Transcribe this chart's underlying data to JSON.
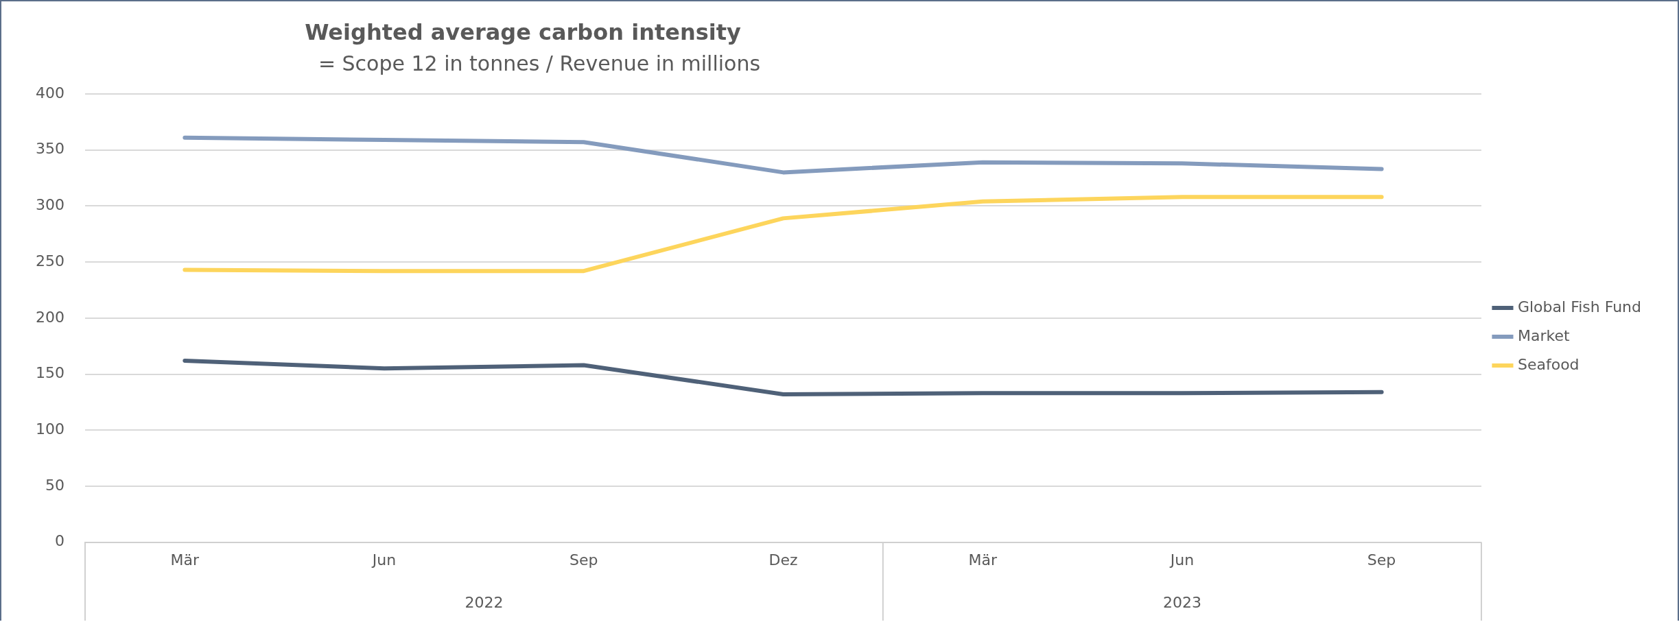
{
  "chart_data": {
    "type": "line",
    "title": "Weighted average carbon intensity",
    "subtitle": "= Scope 12 in tonnes / Revenue in millions",
    "categories": [
      "Mär",
      "Jun",
      "Sep",
      "Dez",
      "Mär",
      "Jun",
      "Sep"
    ],
    "annotations": [
      "2022",
      "2023"
    ],
    "series": [
      {
        "name": "Global Fish Fund",
        "color": "#4f6178",
        "values": [
          162,
          155,
          158,
          132,
          133,
          133,
          134
        ]
      },
      {
        "name": "Market",
        "color": "#849bbd",
        "values": [
          361,
          359,
          357,
          330,
          339,
          338,
          333
        ]
      },
      {
        "name": "Seafood",
        "color": "#fdd55c",
        "values": [
          243,
          242,
          242,
          289,
          304,
          308,
          308
        ]
      }
    ],
    "ylim": [
      0,
      400
    ],
    "yticks": [
      0,
      50,
      100,
      150,
      200,
      250,
      300,
      350,
      400
    ],
    "grid": "y",
    "legend": "right",
    "marker": "none",
    "line_style": "solid"
  }
}
